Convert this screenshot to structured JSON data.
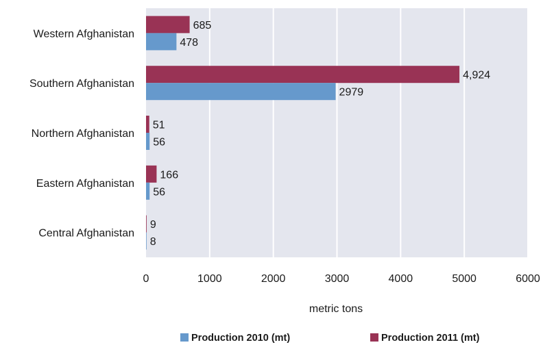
{
  "chart_data": {
    "type": "bar",
    "orientation": "horizontal",
    "categories": [
      "Western Afghanistan",
      "Southern Afghanistan",
      "Northern Afghanistan",
      "Eastern Afghanistan",
      "Central Afghanistan"
    ],
    "series": [
      {
        "name": "Production 2010 (mt)",
        "color": "#6699cc",
        "values": [
          478,
          2979,
          56,
          56,
          8
        ],
        "labels": [
          "478",
          "2979",
          "56",
          "56",
          "8"
        ]
      },
      {
        "name": "Production 2011 (mt)",
        "color": "#993355",
        "values": [
          685,
          4924,
          51,
          166,
          9
        ],
        "labels": [
          "685",
          "4,924",
          "51",
          "166",
          "9"
        ]
      }
    ],
    "xlabel": "metric tons",
    "ylabel": "",
    "xlim": [
      0,
      6000
    ],
    "xticks": [
      0,
      1000,
      2000,
      3000,
      4000,
      5000,
      6000
    ],
    "xtick_labels": [
      "0",
      "1000",
      "2000",
      "3000",
      "4000",
      "5000",
      "6000"
    ],
    "grid": true,
    "plot_background": "#e4e6ee",
    "legend_position": "bottom"
  }
}
